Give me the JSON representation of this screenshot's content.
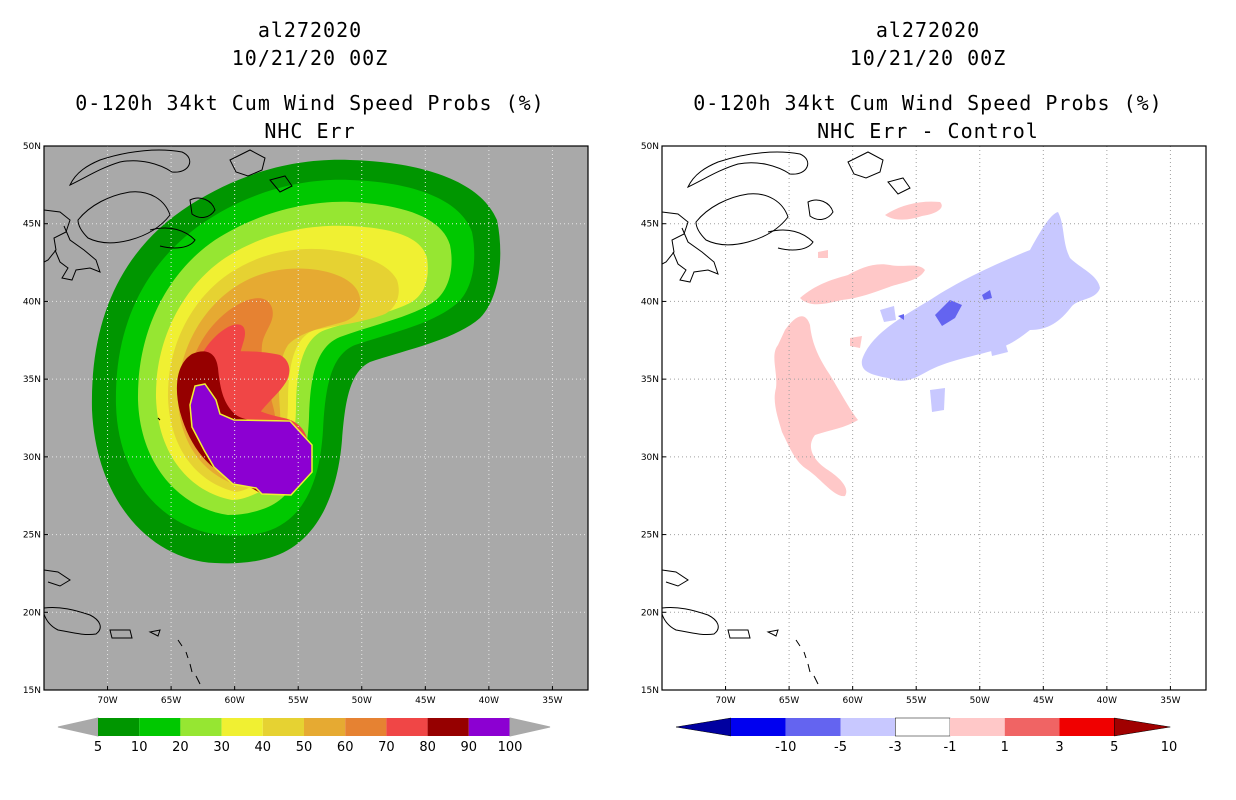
{
  "left_panel": {
    "title_line1": "al272020",
    "title_line2": "10/21/20 00Z",
    "title_line3": "0-120h 34kt Cum Wind Speed Probs (%)",
    "title_line4": "NHC Err",
    "background_color": "#a9a9a9",
    "colorbar": {
      "labels": [
        "5",
        "10",
        "20",
        "30",
        "40",
        "50",
        "60",
        "70",
        "80",
        "90",
        "100"
      ],
      "colors": [
        "#009600",
        "#00c800",
        "#96e632",
        "#f0f032",
        "#e6d232",
        "#e6aa32",
        "#e68232",
        "#f04646",
        "#960000",
        "#8c00d2"
      ],
      "arrow_color": "#a9a9a9"
    }
  },
  "right_panel": {
    "title_line1": "al272020",
    "title_line2": "10/21/20 00Z",
    "title_line3": "0-120h 34kt Cum Wind Speed Probs (%)",
    "title_line4": "NHC Err - Control",
    "background_color": "#ffffff",
    "colorbar": {
      "labels": [
        "-10",
        "-5",
        "-3",
        "-1",
        "1",
        "3",
        "5",
        "10"
      ],
      "colors": [
        "#0000a0",
        "#0000f0",
        "#6464f0",
        "#c8c8ff",
        "#ffffff",
        "#ffc8c8",
        "#f06464",
        "#f00000",
        "#a00000"
      ]
    }
  },
  "map": {
    "lat_labels": [
      "50N",
      "45N",
      "40N",
      "35N",
      "30N",
      "25N",
      "20N",
      "15N"
    ],
    "lon_labels": [
      "70W",
      "65W",
      "60W",
      "55W",
      "50W",
      "45W",
      "40W",
      "35W"
    ],
    "lat_values": [
      50,
      45,
      40,
      35,
      30,
      25,
      20,
      15
    ],
    "lon_values": [
      70,
      65,
      60,
      55,
      50,
      45,
      40,
      35
    ]
  }
}
